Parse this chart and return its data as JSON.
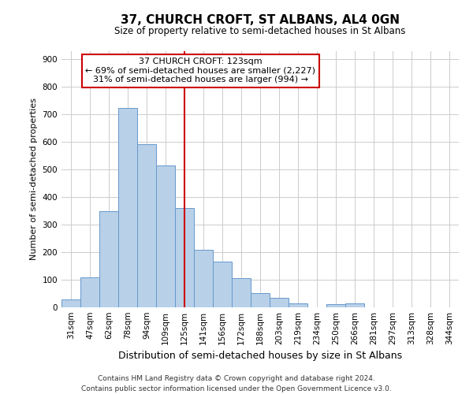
{
  "title": "37, CHURCH CROFT, ST ALBANS, AL4 0GN",
  "subtitle": "Size of property relative to semi-detached houses in St Albans",
  "xlabel": "Distribution of semi-detached houses by size in St Albans",
  "ylabel": "Number of semi-detached properties",
  "bin_labels": [
    "31sqm",
    "47sqm",
    "62sqm",
    "78sqm",
    "94sqm",
    "109sqm",
    "125sqm",
    "141sqm",
    "156sqm",
    "172sqm",
    "188sqm",
    "203sqm",
    "219sqm",
    "234sqm",
    "250sqm",
    "266sqm",
    "281sqm",
    "297sqm",
    "313sqm",
    "328sqm",
    "344sqm"
  ],
  "bar_heights": [
    30,
    108,
    350,
    725,
    592,
    515,
    360,
    210,
    165,
    105,
    52,
    33,
    13,
    0,
    12,
    13,
    0,
    0,
    0,
    0,
    0
  ],
  "bar_color": "#b8d0e8",
  "bar_edge_color": "#6699cc",
  "vline_x_index": 6,
  "vline_color": "#cc0000",
  "annotation_title": "37 CHURCH CROFT: 123sqm",
  "annotation_line1": "← 69% of semi-detached houses are smaller (2,227)",
  "annotation_line2": "31% of semi-detached houses are larger (994) →",
  "annotation_box_facecolor": "#ffffff",
  "annotation_box_edgecolor": "#cc0000",
  "ylim": [
    0,
    930
  ],
  "yticks": [
    0,
    100,
    200,
    300,
    400,
    500,
    600,
    700,
    800,
    900
  ],
  "footer_line1": "Contains HM Land Registry data © Crown copyright and database right 2024.",
  "footer_line2": "Contains public sector information licensed under the Open Government Licence v3.0.",
  "bg_color": "#ffffff",
  "grid_color": "#cccccc",
  "title_fontsize": 11,
  "subtitle_fontsize": 8.5,
  "ylabel_fontsize": 8,
  "xlabel_fontsize": 9,
  "tick_fontsize": 7.5,
  "annotation_fontsize": 8,
  "footer_fontsize": 6.5
}
